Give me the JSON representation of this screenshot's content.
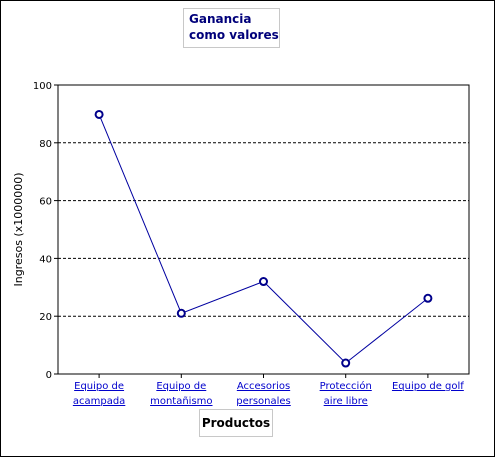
{
  "chart_data": {
    "type": "line",
    "title_lines": [
      "Ganancia",
      "como valores"
    ],
    "xlabel": "Productos",
    "ylabel": "Ingresos (x1000000)",
    "ylim": [
      0,
      100
    ],
    "yticks": [
      0,
      20,
      40,
      60,
      80,
      100
    ],
    "grid": "horizontal-dashed",
    "categories": [
      [
        "Equipo de",
        "acampada"
      ],
      [
        "Equipo de",
        "montañismo"
      ],
      [
        "Accesorios",
        "personales"
      ],
      [
        "Protección",
        "aire libre"
      ],
      [
        "Equipo de golf"
      ]
    ],
    "series": [
      {
        "values": [
          89.8,
          21,
          32,
          3.8,
          26.2
        ]
      }
    ],
    "colors": {
      "line": "#0000a0",
      "marker": "#00008b",
      "category_text": "#0000cc",
      "title_text": "#00007a"
    }
  }
}
